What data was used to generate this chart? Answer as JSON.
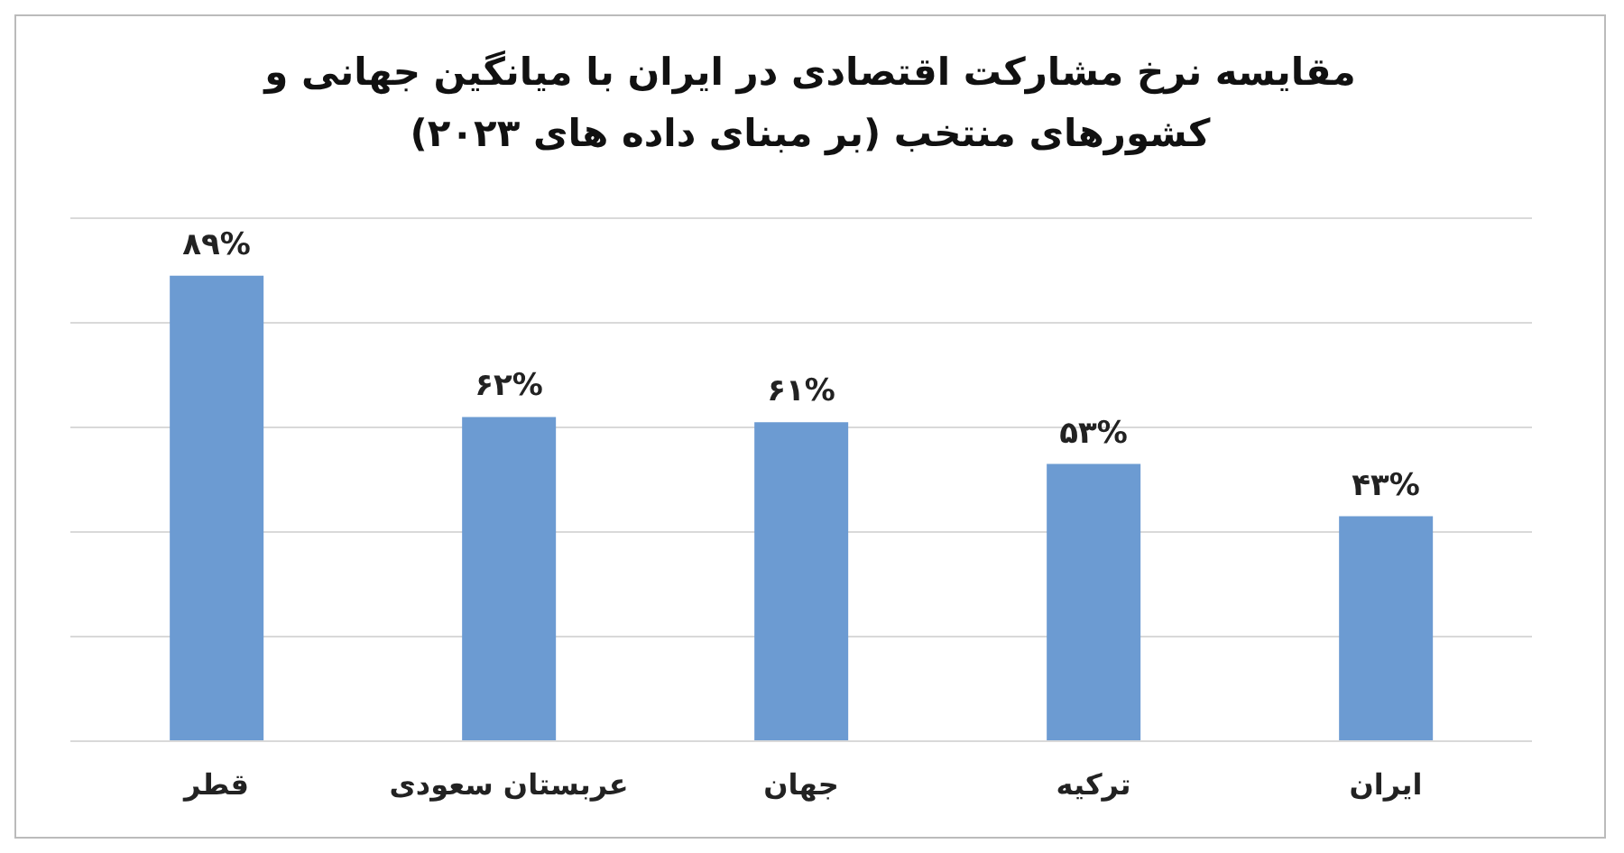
{
  "chart_data": {
    "type": "bar",
    "title": "مقایسه نرخ مشارکت اقتصادی در ایران با میانگین جهانی و کشورهای منتخب (بر مبنای داده های ۲۰۲۳)",
    "categories": [
      "قطر",
      "عربستان سعودی",
      "جهان",
      "ترکیه",
      "ایران"
    ],
    "values": [
      89,
      62,
      61,
      53,
      43
    ],
    "value_labels": [
      "۸۹%",
      "۶۲%",
      "۶۱%",
      "۵۳%",
      "۴۳%"
    ],
    "color": "#6c9bd2",
    "grid": "y",
    "tick_labels": "x"
  }
}
